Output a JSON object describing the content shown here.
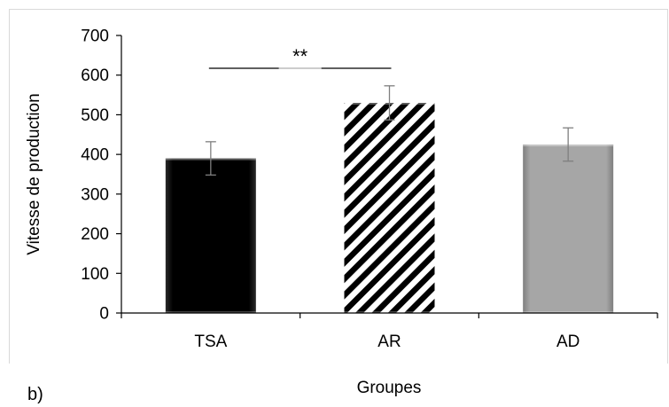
{
  "panel_label": "b)",
  "chart_data": {
    "type": "bar",
    "categories": [
      "TSA",
      "AR",
      "AD"
    ],
    "values": [
      390,
      530,
      425
    ],
    "error": [
      42,
      43,
      42
    ],
    "fills": [
      "solid-black",
      "diagonal-stripes",
      "solid-gray"
    ],
    "xlabel": "Groupes",
    "ylabel": "Vitesse de production",
    "ylim": [
      0,
      700
    ],
    "yticks": [
      0,
      100,
      200,
      300,
      400,
      500,
      600,
      700
    ],
    "grid": false,
    "legend": "none",
    "significance": {
      "from": "TSA",
      "to": "AR",
      "label": "**"
    },
    "colors": {
      "tsa": "#0d0d0d",
      "ad": "#a6a6a6",
      "stripe": "#000000",
      "axis": "#000000"
    }
  }
}
